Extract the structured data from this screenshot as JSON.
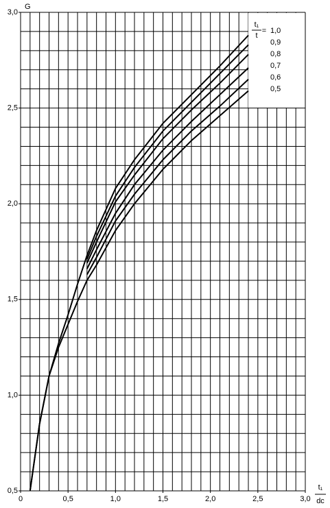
{
  "chart_data": {
    "type": "line",
    "ylabel": "G",
    "xlabel": {
      "numerator": "t₁",
      "denominator": "dc"
    },
    "legend_title": {
      "numerator": "t₁",
      "denominator": "t",
      "relation": "="
    },
    "x": [
      0.1,
      0.2,
      0.3,
      0.4,
      0.5,
      0.6,
      0.7,
      0.8,
      1.0,
      1.2,
      1.5,
      1.8,
      2.1,
      2.4
    ],
    "series": [
      {
        "name": "1,0",
        "color": "#000000",
        "values": [
          0.5,
          0.85,
          1.1,
          1.27,
          1.42,
          1.58,
          1.73,
          1.86,
          2.08,
          2.23,
          2.42,
          2.57,
          2.72,
          2.88
        ]
      },
      {
        "name": "0,9",
        "color": "#000000",
        "values": [
          null,
          null,
          null,
          null,
          null,
          null,
          1.71,
          1.83,
          2.04,
          2.19,
          2.38,
          2.53,
          2.68,
          2.83
        ]
      },
      {
        "name": "0,8",
        "color": "#000000",
        "values": [
          null,
          null,
          null,
          null,
          null,
          null,
          1.69,
          1.8,
          2.01,
          2.15,
          2.34,
          2.49,
          2.63,
          2.78
        ]
      },
      {
        "name": "0,7",
        "color": "#000000",
        "values": [
          null,
          null,
          null,
          null,
          null,
          null,
          1.66,
          1.76,
          1.95,
          2.1,
          2.28,
          2.43,
          2.57,
          2.71
        ]
      },
      {
        "name": "0,6",
        "color": "#000000",
        "values": [
          null,
          null,
          null,
          null,
          null,
          null,
          1.63,
          1.72,
          1.91,
          2.05,
          2.23,
          2.38,
          2.51,
          2.65
        ]
      },
      {
        "name": "0,5",
        "color": "#000000",
        "values": [
          0.5,
          0.85,
          1.1,
          1.25,
          1.37,
          1.49,
          1.6,
          1.68,
          1.86,
          2.0,
          2.18,
          2.33,
          2.46,
          2.59
        ]
      }
    ],
    "xlim": [
      0,
      3.0
    ],
    "ylim": [
      0.5,
      3.0
    ],
    "xticks": [
      0,
      {
        "value": 0.5,
        "label": "0,5"
      },
      {
        "value": 1.0,
        "label": "1,0"
      },
      {
        "value": 1.5,
        "label": "1,5"
      },
      {
        "value": 2.0,
        "label": "2,0"
      },
      {
        "value": 2.5,
        "label": "2,5"
      },
      {
        "value": 3.0,
        "label": "3,0"
      }
    ],
    "yticks": [
      {
        "value": 0.5,
        "label": "0,5"
      },
      {
        "value": 1.0,
        "label": "1,0"
      },
      {
        "value": 1.5,
        "label": "1,5"
      },
      {
        "value": 2.0,
        "label": "2,0"
      },
      {
        "value": 2.5,
        "label": "2,5"
      },
      {
        "value": 3.0,
        "label": "3,0"
      }
    ],
    "grid": true,
    "grid_step": 0.1,
    "legend": "top-right"
  }
}
